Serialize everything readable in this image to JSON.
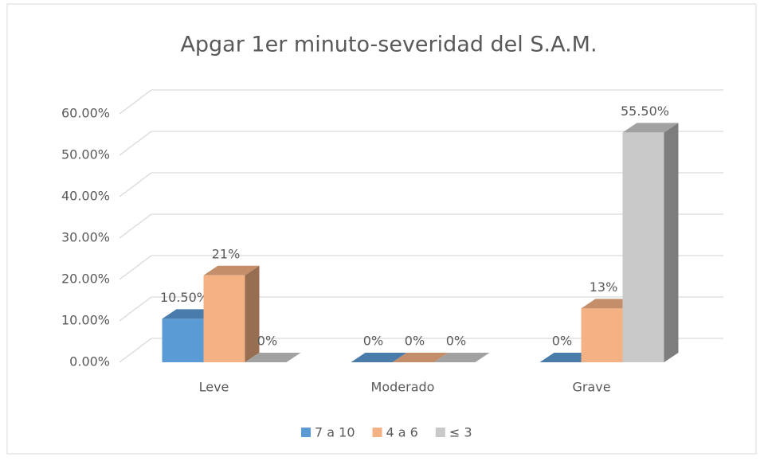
{
  "chart_data": {
    "type": "bar3d",
    "title": "Apgar 1er minuto-severidad del S.A.M.",
    "categories": [
      "Leve",
      "Moderado",
      "Grave"
    ],
    "series": [
      {
        "name": "7 a 10",
        "color": "#5b9bd5",
        "values": [
          10.5,
          0,
          0
        ],
        "value_labels": [
          "10.50%",
          "0%",
          "0%"
        ]
      },
      {
        "name": "4 a 6",
        "color": "#f4b183",
        "values": [
          21,
          0,
          13
        ],
        "value_labels": [
          "21%",
          "0%",
          "13%"
        ]
      },
      {
        "name": "≤ 3",
        "color": "#c9c9c9",
        "values": [
          0,
          0,
          55.5
        ],
        "value_labels": [
          "0%",
          "0%",
          "55.50%"
        ]
      }
    ],
    "ylim": [
      0,
      60
    ],
    "yticks": [
      {
        "value": 0,
        "label": "0.00%"
      },
      {
        "value": 10,
        "label": "10.00%"
      },
      {
        "value": 20,
        "label": "20.00%"
      },
      {
        "value": 30,
        "label": "30.00%"
      },
      {
        "value": 40,
        "label": "40.00%"
      },
      {
        "value": 50,
        "label": "50.00%"
      },
      {
        "value": 60,
        "label": "60.00%"
      }
    ],
    "grid": true,
    "legend": "bottom"
  }
}
